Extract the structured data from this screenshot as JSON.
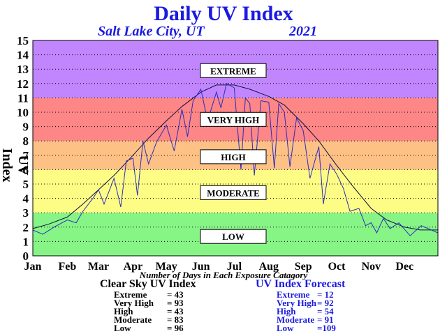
{
  "header": {
    "title": "Daily UV Index",
    "location": "Salt Lake City, UT",
    "year": "2021"
  },
  "chart_data": {
    "type": "line",
    "title": "Daily UV Index",
    "ylabel": "UV Index",
    "ylim": [
      0,
      15
    ],
    "yticks": [
      0,
      1,
      2,
      3,
      4,
      5,
      6,
      7,
      8,
      9,
      10,
      11,
      12,
      13,
      14,
      15
    ],
    "xticks": [
      "Jan",
      "Feb",
      "Mar",
      "Apr",
      "May",
      "Jun",
      "Jul",
      "Aug",
      "Sep",
      "Oct",
      "Nov",
      "Dec"
    ],
    "grid": "horizontal dotted",
    "bands": [
      {
        "label": "LOW",
        "from": 0,
        "to": 3,
        "color": "#86f586"
      },
      {
        "label": "MODERATE",
        "from": 3,
        "to": 6,
        "color": "#fdfd86"
      },
      {
        "label": "HIGH",
        "from": 6,
        "to": 8,
        "color": "#fdc186"
      },
      {
        "label": "VERY HIGH",
        "from": 8,
        "to": 11,
        "color": "#fd8686"
      },
      {
        "label": "EXTREME",
        "from": 11,
        "to": 15,
        "color": "#c186fd"
      }
    ],
    "series": [
      {
        "name": "Clear Sky UV Index",
        "color": "#101040",
        "x": [
          1,
          15,
          32,
          46,
          60,
          74,
          91,
          105,
          121,
          135,
          152,
          166,
          182,
          196,
          213,
          227,
          244,
          258,
          274,
          288,
          305,
          319,
          335,
          349,
          365
        ],
        "values": [
          1.9,
          2.2,
          2.7,
          3.6,
          4.6,
          5.6,
          7.0,
          8.2,
          9.4,
          10.4,
          11.4,
          11.9,
          11.9,
          11.6,
          11.1,
          10.5,
          9.2,
          8.0,
          6.3,
          4.9,
          3.3,
          2.5,
          2.0,
          1.8,
          1.8
        ]
      },
      {
        "name": "UV Index Forecast",
        "color": "#2c2cc0",
        "x": [
          1,
          10,
          20,
          32,
          40,
          46,
          55,
          60,
          65,
          74,
          80,
          85,
          91,
          95,
          100,
          105,
          112,
          121,
          128,
          135,
          140,
          145,
          152,
          158,
          166,
          170,
          175,
          182,
          188,
          192,
          196,
          200,
          206,
          213,
          218,
          222,
          227,
          232,
          238,
          244,
          250,
          258,
          262,
          268,
          274,
          280,
          286,
          294,
          300,
          305,
          310,
          316,
          322,
          330,
          340,
          350,
          365
        ],
        "values": [
          1.8,
          1.5,
          2.0,
          2.5,
          2.3,
          3.1,
          4.0,
          4.6,
          3.6,
          5.4,
          3.4,
          6.6,
          6.8,
          4.2,
          8.0,
          6.4,
          7.9,
          9.1,
          7.3,
          10.2,
          8.3,
          10.8,
          11.6,
          9.4,
          11.4,
          10.3,
          12.0,
          11.7,
          6.0,
          11.0,
          10.6,
          5.6,
          10.8,
          10.7,
          6.1,
          10.6,
          10.0,
          6.2,
          9.6,
          8.7,
          5.4,
          7.6,
          3.6,
          6.4,
          5.7,
          4.7,
          3.1,
          3.3,
          2.1,
          2.3,
          1.6,
          2.6,
          1.9,
          2.3,
          1.4,
          2.1,
          1.6
        ]
      }
    ],
    "caption": "Number of Days in Each Exposure Catagory",
    "summary": {
      "clear_sky": {
        "title": "Clear Sky UV Index",
        "rows": [
          {
            "label": "Extreme",
            "value": "= 43"
          },
          {
            "label": "Very High",
            "value": "= 93"
          },
          {
            "label": "High",
            "value": "= 43"
          },
          {
            "label": "Moderate",
            "value": "= 83"
          },
          {
            "label": "Low",
            "value": "= 96"
          }
        ]
      },
      "forecast": {
        "title": "UV Index Forecast",
        "rows": [
          {
            "label": "Extreme",
            "value": "= 12"
          },
          {
            "label": "Very High",
            "value": "= 92"
          },
          {
            "label": "High",
            "value": "= 54"
          },
          {
            "label": "Moderate",
            "value": "= 91"
          },
          {
            "label": "Low",
            "value": "=109"
          }
        ]
      }
    }
  }
}
